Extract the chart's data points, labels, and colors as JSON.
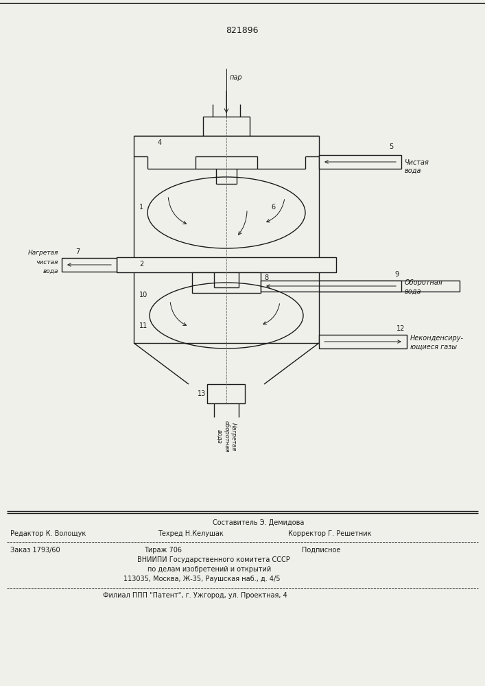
{
  "patent_number": "821896",
  "bg_color": "#f0f0eb",
  "line_color": "#1a1a1a",
  "text_color": "#1a1a1a",
  "labels": {
    "par": "пар",
    "chistaya_voda_1": "Чистая",
    "chistaya_voda_2": "вода",
    "nagretaya_1": "Нагретая",
    "nagretaya_2": "чистая",
    "nagretaya_3": "вода",
    "oborotnaya_1": "Оборотная",
    "oborotnaya_2": "вода",
    "nekond_1": "Неконденсиру-",
    "nekond_2": "ющиеся газы",
    "nagr_obor_rot": "Нагретая\nоборотная\nвода"
  },
  "footer": {
    "line1_left": "Редактор К. Волощук",
    "line1_mid": "Составитель Э. Демидова",
    "line2_left": "Техред Н.Келушак",
    "line2_mid": "Корректор Г. Решетник",
    "order": "Заказ 1793/60",
    "tirazh": "Тираж 706",
    "podp": "Подписное",
    "vniip1": "ВНИИПИ Государственного комитета СССР",
    "vniip2": "по делам изобретений и открытий",
    "vniip3": "113035, Москва, Ж-35, Раушская наб., д. 4/5",
    "filial": "Филиал ППП \"Патент\", г. Ужгород, ул. Проектная, 4"
  }
}
